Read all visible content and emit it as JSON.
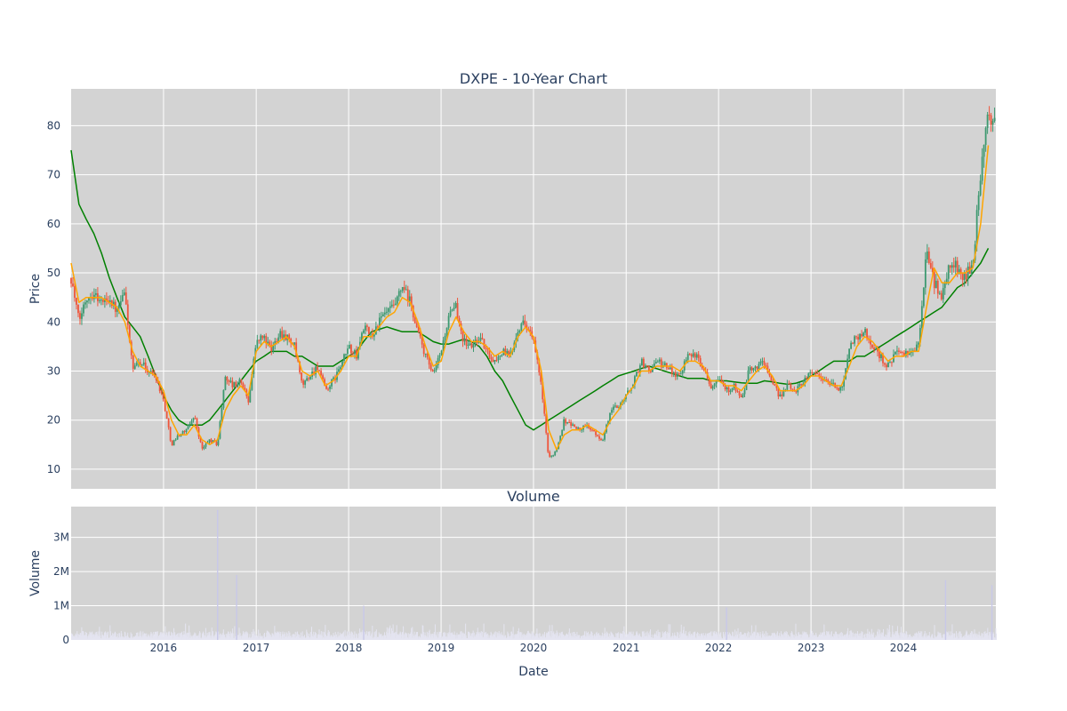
{
  "chart_data": [
    {
      "type": "candlestick",
      "title": "DXPE - 10-Year Chart",
      "ylabel": "Price",
      "x_range": [
        "2015-01-01",
        "2024-12-31"
      ],
      "ylim": [
        6,
        87.5
      ],
      "yticks": [
        10,
        20,
        30,
        40,
        50,
        60,
        70,
        80
      ],
      "grid": true,
      "colors": {
        "increasing": "#3d9970",
        "decreasing": "#ef553b",
        "ma_short": "#ffa500",
        "ma_long": "#008000",
        "plot_bg": "#d3d3d3"
      },
      "close_series": {
        "x": [
          "2015-01-01",
          "2015-02-01",
          "2015-03-01",
          "2015-04-01",
          "2015-05-01",
          "2015-06-01",
          "2015-07-01",
          "2015-08-01",
          "2015-09-01",
          "2015-10-01",
          "2015-11-01",
          "2015-12-01",
          "2016-01-01",
          "2016-02-01",
          "2016-03-01",
          "2016-04-01",
          "2016-05-01",
          "2016-06-01",
          "2016-07-01",
          "2016-08-01",
          "2016-09-01",
          "2016-10-01",
          "2016-11-01",
          "2016-12-01",
          "2017-01-01",
          "2017-02-01",
          "2017-03-01",
          "2017-04-01",
          "2017-05-01",
          "2017-06-01",
          "2017-07-01",
          "2017-08-01",
          "2017-09-01",
          "2017-10-01",
          "2017-11-01",
          "2017-12-01",
          "2018-01-01",
          "2018-02-01",
          "2018-03-01",
          "2018-04-01",
          "2018-05-01",
          "2018-06-01",
          "2018-07-01",
          "2018-08-01",
          "2018-09-01",
          "2018-10-01",
          "2018-11-01",
          "2018-12-01",
          "2019-01-01",
          "2019-02-01",
          "2019-03-01",
          "2019-04-01",
          "2019-05-01",
          "2019-06-01",
          "2019-07-01",
          "2019-08-01",
          "2019-09-01",
          "2019-10-01",
          "2019-11-01",
          "2019-12-01",
          "2020-01-01",
          "2020-02-01",
          "2020-03-01",
          "2020-04-01",
          "2020-05-01",
          "2020-06-01",
          "2020-07-01",
          "2020-08-01",
          "2020-09-01",
          "2020-10-01",
          "2020-11-01",
          "2020-12-01",
          "2021-01-01",
          "2021-02-01",
          "2021-03-01",
          "2021-04-01",
          "2021-05-01",
          "2021-06-01",
          "2021-07-01",
          "2021-08-01",
          "2021-09-01",
          "2021-10-01",
          "2021-11-01",
          "2021-12-01",
          "2022-01-01",
          "2022-02-01",
          "2022-03-01",
          "2022-04-01",
          "2022-05-01",
          "2022-06-01",
          "2022-07-01",
          "2022-08-01",
          "2022-09-01",
          "2022-10-01",
          "2022-11-01",
          "2022-12-01",
          "2023-01-01",
          "2023-02-01",
          "2023-03-01",
          "2023-04-01",
          "2023-05-01",
          "2023-06-01",
          "2023-07-01",
          "2023-08-01",
          "2023-09-01",
          "2023-10-01",
          "2023-11-01",
          "2023-12-01",
          "2024-01-01",
          "2024-02-01",
          "2024-03-01",
          "2024-04-01",
          "2024-05-01",
          "2024-06-01",
          "2024-07-01",
          "2024-08-01",
          "2024-09-01",
          "2024-10-01",
          "2024-11-01",
          "2024-12-01"
        ],
        "values": [
          49,
          40,
          45,
          46,
          44,
          45,
          42,
          46,
          30,
          32,
          30,
          29,
          24,
          15,
          17,
          18,
          21,
          14,
          16,
          15,
          29,
          27,
          28,
          24,
          36,
          37,
          34,
          38,
          37,
          35,
          27,
          29,
          31,
          26,
          28,
          31,
          35,
          33,
          39,
          37,
          40,
          42,
          43,
          47,
          44,
          38,
          33,
          29,
          34,
          41,
          43,
          36,
          35,
          37,
          34,
          32,
          34,
          33,
          39,
          40,
          36,
          27,
          12,
          14,
          20,
          19,
          18,
          19,
          17,
          16,
          22,
          23,
          25,
          28,
          32,
          30,
          32,
          31,
          30,
          29,
          34,
          33,
          31,
          27,
          29,
          26,
          27,
          24,
          30,
          31,
          32,
          27,
          25,
          27,
          26,
          28,
          30,
          29,
          28,
          27,
          26,
          35,
          37,
          38,
          35,
          33,
          31,
          34,
          33,
          34,
          35,
          55,
          48,
          45,
          52,
          51,
          49,
          52,
          70,
          82
        ]
      },
      "ma_short": [
        52,
        44,
        45,
        45,
        45,
        44,
        43,
        40,
        34,
        31,
        30,
        29,
        26,
        20,
        17,
        17,
        19,
        16,
        15,
        16,
        22,
        25,
        27,
        25,
        34,
        36,
        35,
        36,
        37,
        35,
        30,
        29,
        30,
        27,
        28,
        30,
        33,
        33,
        37,
        37,
        39,
        41,
        42,
        45,
        44,
        40,
        35,
        31,
        32,
        38,
        41,
        38,
        36,
        36,
        35,
        33,
        34,
        33,
        37,
        39,
        37,
        30,
        18,
        14,
        17,
        18,
        18,
        19,
        18,
        17,
        20,
        22,
        25,
        27,
        30,
        30,
        31,
        31,
        31,
        30,
        32,
        32,
        31,
        28,
        28,
        27,
        27,
        26,
        28,
        30,
        31,
        29,
        26,
        26,
        26,
        27,
        29,
        29,
        28,
        27,
        27,
        31,
        35,
        37,
        36,
        34,
        32,
        33,
        33,
        34,
        34,
        43,
        51,
        48,
        48,
        50,
        50,
        51,
        60,
        76
      ],
      "ma_long": [
        75,
        64,
        61,
        58,
        54,
        49,
        45,
        41,
        39,
        37,
        33,
        29,
        25,
        22,
        20,
        19,
        19,
        19,
        20,
        22,
        24,
        26,
        28,
        30,
        32,
        33,
        34,
        34,
        34,
        33,
        33,
        32,
        31,
        31,
        31,
        32,
        33,
        34,
        36,
        38,
        38.5,
        39,
        38.5,
        38,
        38,
        38,
        37,
        36,
        35.5,
        35.5,
        36,
        36.5,
        36,
        35,
        33,
        30,
        28,
        25,
        22,
        19,
        18,
        19,
        20,
        21,
        22,
        23,
        24,
        25,
        26,
        27,
        28,
        29,
        29.5,
        30,
        30.5,
        31,
        30.5,
        30,
        29.5,
        29,
        28.5,
        28.5,
        28.5,
        28,
        28,
        28,
        27.8,
        27.6,
        27.5,
        27.5,
        28,
        27.8,
        27.5,
        27.3,
        27.5,
        28,
        29,
        30,
        31,
        32,
        32,
        32,
        33,
        33,
        34,
        35,
        36,
        37,
        38,
        39,
        40,
        41,
        42,
        43,
        45,
        47,
        48,
        50,
        52,
        55
      ]
    },
    {
      "type": "bar",
      "title": "Volume",
      "xlabel": "Date",
      "ylabel": "Volume",
      "ylim": [
        0,
        3900000
      ],
      "yticks": [
        0,
        1000000,
        2000000,
        3000000
      ],
      "ytick_labels": [
        "0",
        "1M",
        "2M",
        "3M"
      ],
      "xtick_labels": [
        "2016",
        "2017",
        "2018",
        "2019",
        "2020",
        "2021",
        "2022",
        "2023",
        "2024"
      ],
      "colors": {
        "bar": "#e4e4f0",
        "spike": "#c8c8e8"
      },
      "spikes": [
        {
          "x": "2016-08-01",
          "value": 3800000
        },
        {
          "x": "2016-10-15",
          "value": 1900000
        },
        {
          "x": "2018-03-01",
          "value": 1000000
        },
        {
          "x": "2022-02-01",
          "value": 950000
        },
        {
          "x": "2024-06-15",
          "value": 1750000
        },
        {
          "x": "2024-12-15",
          "value": 1600000
        }
      ]
    }
  ]
}
